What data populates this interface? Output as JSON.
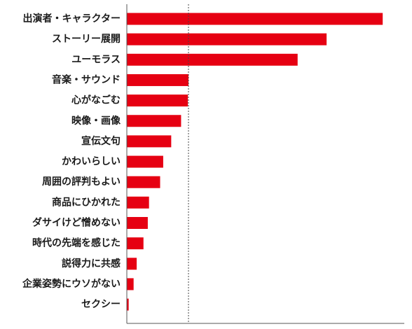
{
  "chart_data": {
    "type": "bar",
    "orientation": "horizontal",
    "categories": [
      "出演者・キャラクター",
      "ストーリー展開",
      "ユーモラス",
      "音楽・サウンド",
      "心がなごむ",
      "映像・画像",
      "宣伝文句",
      "かわいらしい",
      "周囲の評判もよい",
      "商品にひかれた",
      "ダサイけど憎めない",
      "時代の先端を感じた",
      "説得力に共感",
      "企業姿勢にウソがない",
      "セクシー"
    ],
    "values": [
      41.5,
      32.4,
      27.7,
      10.0,
      9.9,
      8.8,
      7.2,
      5.9,
      5.4,
      3.6,
      3.4,
      2.7,
      1.6,
      1.1,
      0.3
    ],
    "title": "",
    "xlabel": "",
    "ylabel": "",
    "xlim": [
      0,
      45
    ],
    "reference_line": 10,
    "grid": false,
    "bar_color": "#e60012"
  }
}
